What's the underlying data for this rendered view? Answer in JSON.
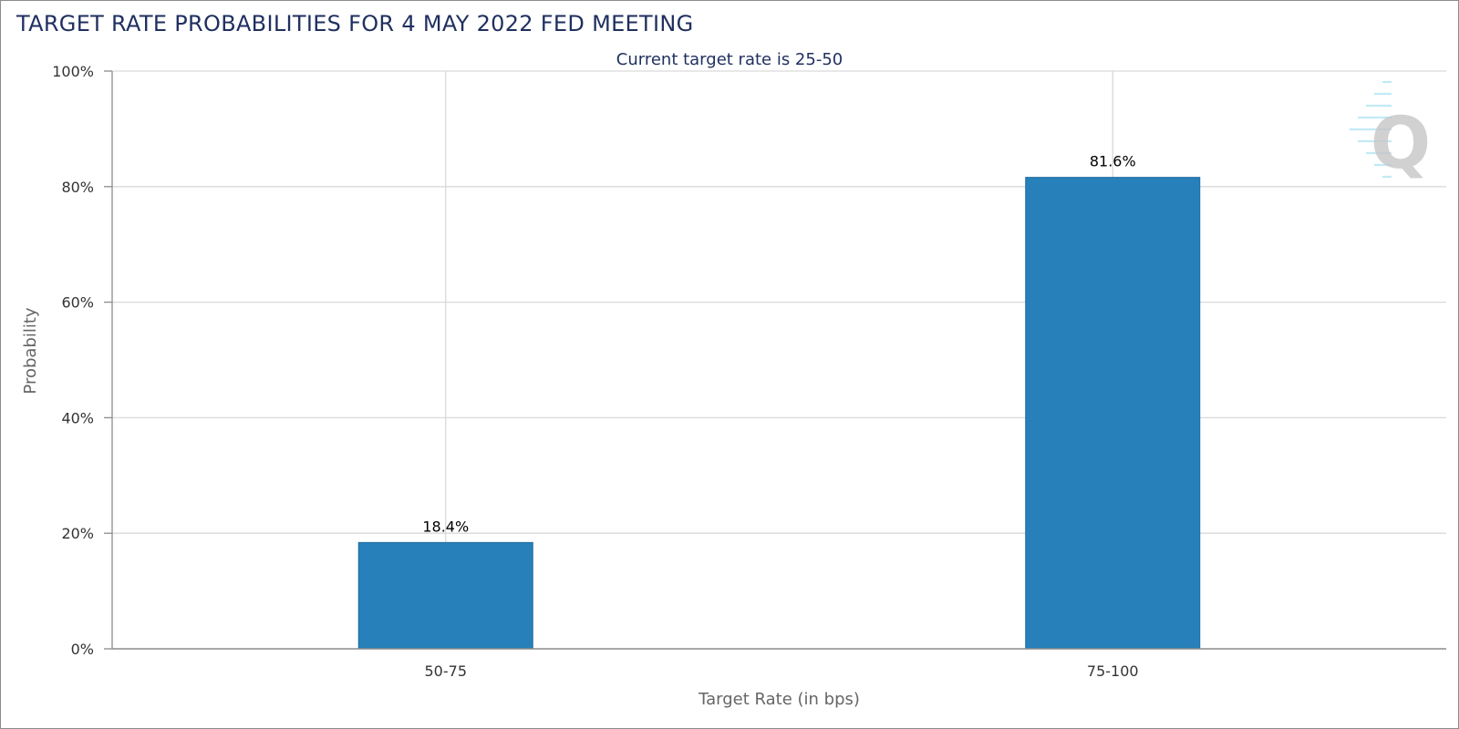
{
  "page": {
    "title": "TARGET RATE PROBABILITIES FOR 4 MAY 2022 FED MEETING"
  },
  "colors": {
    "bar": "#2780b9",
    "bar_border": "#1f6a9c",
    "grid": "#d9d9d9",
    "axis": "#8c8c8c",
    "title": "#1f2f5f",
    "subtitle": "#1f2f5f",
    "axis_label": "#666666",
    "tick_label": "#333333",
    "data_label": "#000000"
  },
  "watermark": {
    "letter": "Q",
    "icon": "quikstrike-logo-icon"
  },
  "chart_data": {
    "type": "bar",
    "title": "TARGET RATE PROBABILITIES FOR 4 MAY 2022 FED MEETING",
    "subtitle": "Current target rate is 25-50",
    "xlabel": "Target Rate (in bps)",
    "ylabel": "Probability",
    "categories": [
      "50-75",
      "75-100"
    ],
    "values": [
      18.4,
      81.6
    ],
    "data_labels": [
      "18.4%",
      "81.6%"
    ],
    "ylim": [
      0,
      100
    ],
    "yticks": [
      0,
      20,
      40,
      60,
      80,
      100
    ],
    "ytick_labels": [
      "0%",
      "20%",
      "40%",
      "60%",
      "80%",
      "100%"
    ],
    "grid": true,
    "legend": "none"
  }
}
